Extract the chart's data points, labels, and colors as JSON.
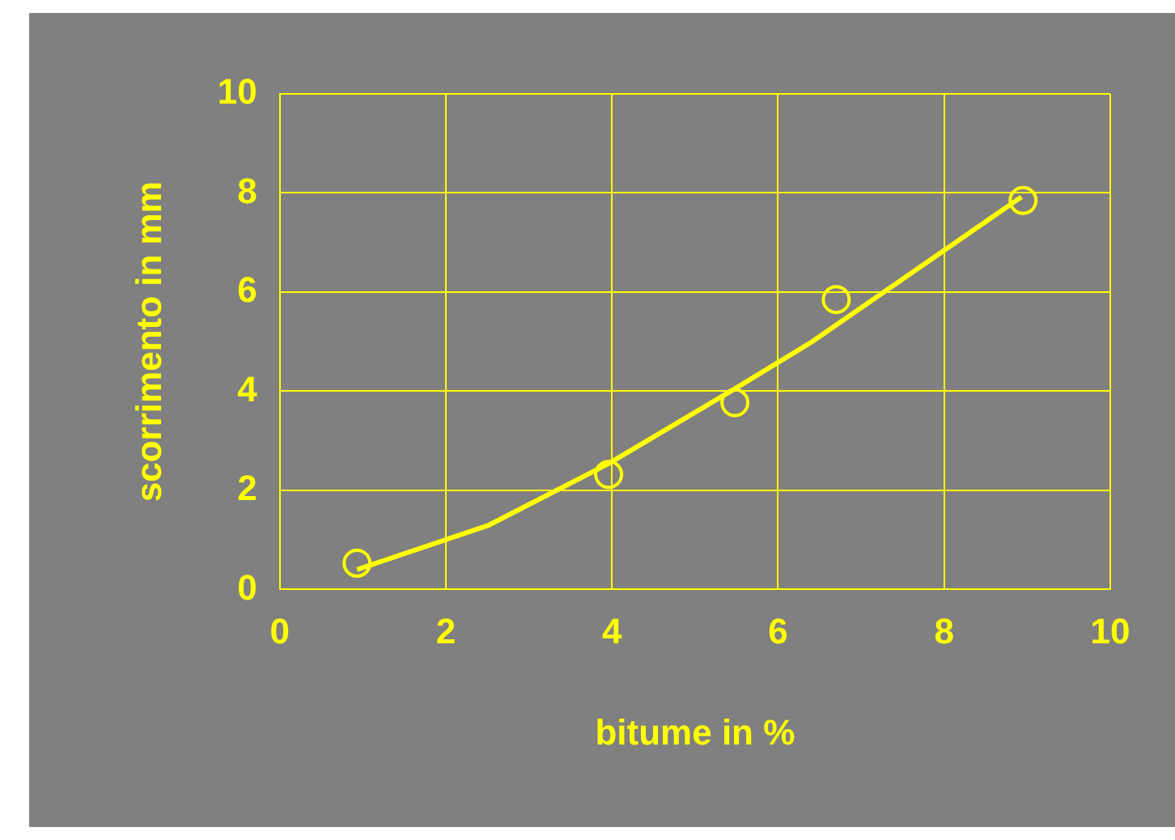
{
  "chart_data": {
    "type": "scatter",
    "xlabel": "bitume in %",
    "ylabel": "scorrimento in mm",
    "xlim": [
      0,
      10
    ],
    "ylim": [
      0,
      10
    ],
    "xticks": [
      0,
      2,
      4,
      6,
      8,
      10
    ],
    "yticks": [
      0,
      2,
      4,
      6,
      8,
      10
    ],
    "grid": true,
    "legend": false,
    "series": [
      {
        "type": "scatter",
        "color": "#ffff00",
        "marker": "circle",
        "x": [
          0.93,
          3.96,
          5.48,
          6.7,
          8.95
        ],
        "values": [
          0.53,
          2.32,
          3.77,
          5.85,
          7.85
        ]
      },
      {
        "type": "line",
        "color": "#ffff00",
        "marker": "none",
        "line_style": "solid",
        "x": [
          0.93,
          2.52,
          3.96,
          5.48,
          6.41,
          8.93
        ],
        "values": [
          0.4,
          1.3,
          2.54,
          4.05,
          5.0,
          7.92
        ]
      }
    ]
  }
}
